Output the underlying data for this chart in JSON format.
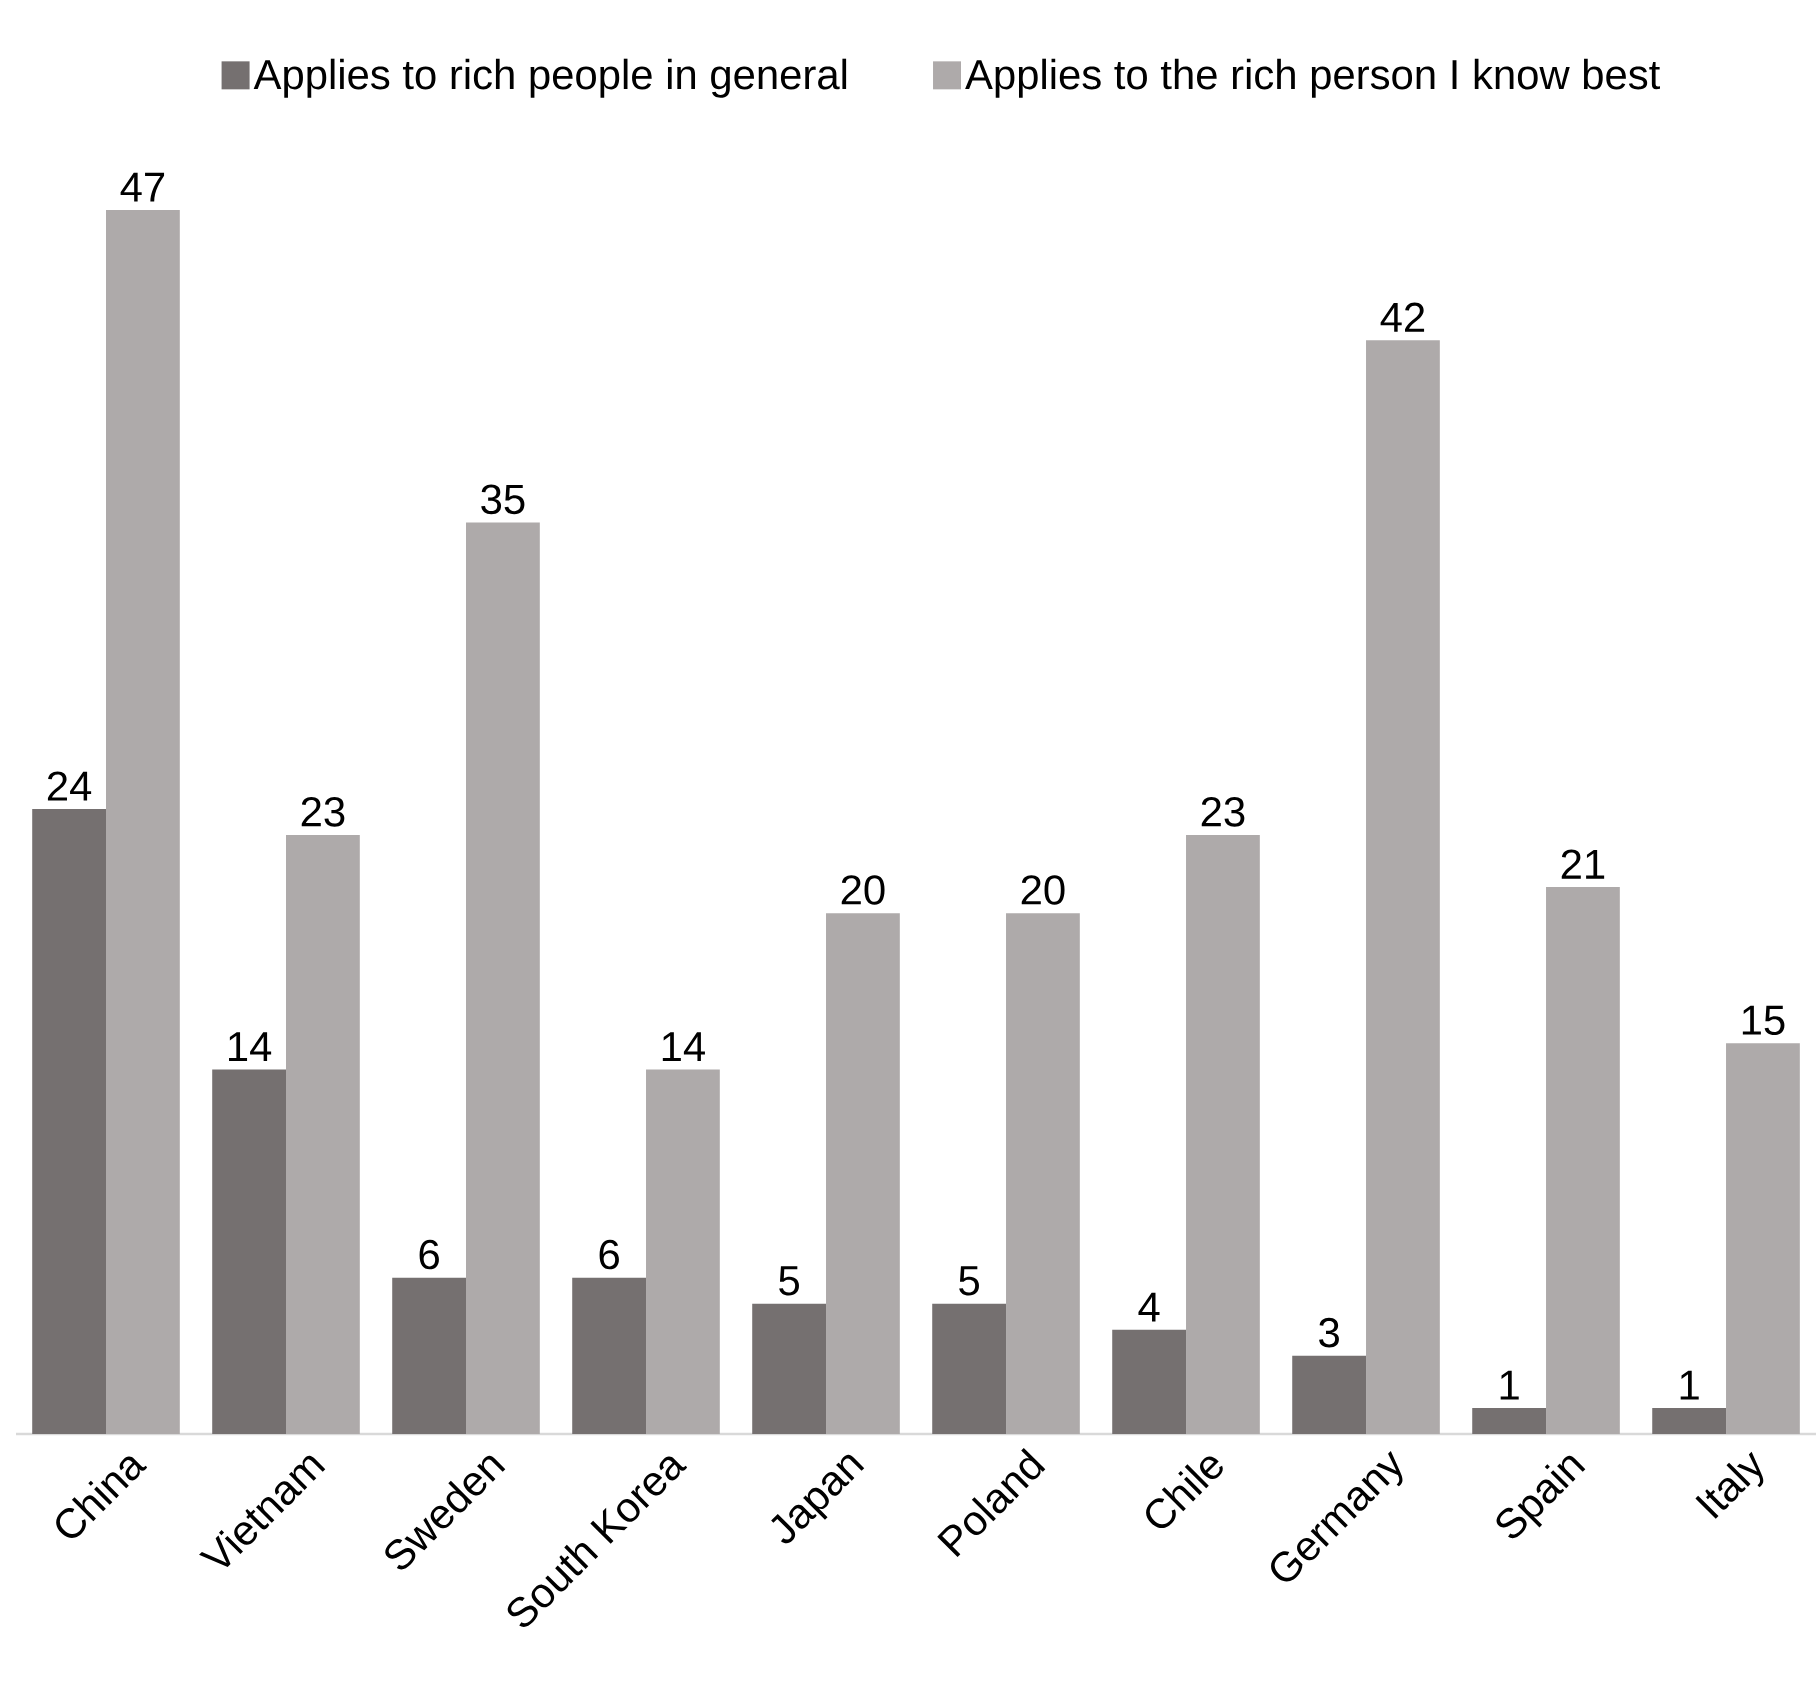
{
  "chart_data": {
    "type": "bar",
    "categories": [
      "China",
      "Vietnam",
      "Sweden",
      "South Korea",
      "Japan",
      "Poland",
      "Chile",
      "Germany",
      "Spain",
      "Italy"
    ],
    "series": [
      {
        "name": "Applies to rich people in general",
        "color": "#757070",
        "values": [
          24,
          14,
          6,
          6,
          5,
          5,
          4,
          3,
          1,
          1
        ]
      },
      {
        "name": "Applies to the rich person I know best",
        "color": "#aeaaaa",
        "values": [
          47,
          23,
          35,
          14,
          20,
          20,
          23,
          42,
          21,
          15
        ]
      }
    ],
    "data_labels": true,
    "legend": "top",
    "tick_labels": "x"
  }
}
